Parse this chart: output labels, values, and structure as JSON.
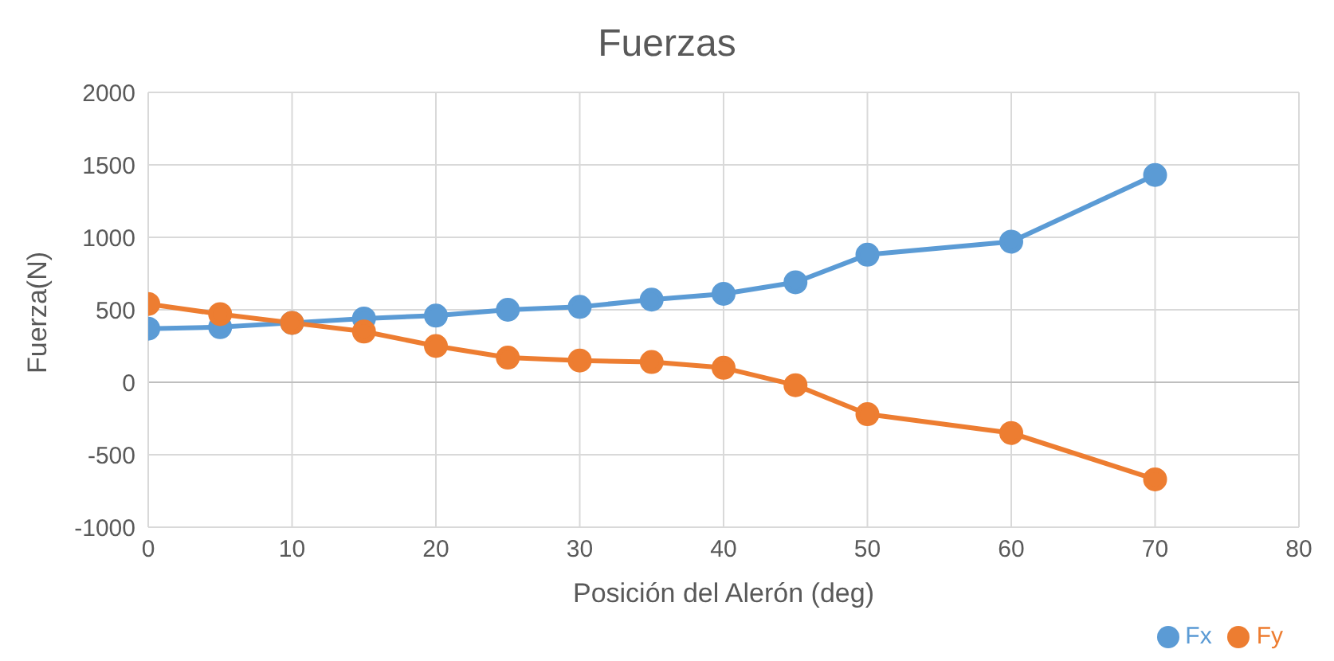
{
  "chart_data": {
    "type": "line",
    "title": "Fuerzas",
    "xlabel": "Posición del Alerón (deg)",
    "ylabel": "Fuerza(N)",
    "x": [
      0,
      5,
      10,
      15,
      20,
      25,
      30,
      35,
      40,
      45,
      50,
      60,
      70
    ],
    "series": [
      {
        "name": "Fx",
        "color": "#5b9bd5",
        "values": [
          370,
          380,
          410,
          440,
          460,
          500,
          520,
          570,
          610,
          690,
          880,
          970,
          1430
        ]
      },
      {
        "name": "Fy",
        "color": "#ed7d31",
        "values": [
          540,
          470,
          410,
          350,
          250,
          170,
          150,
          140,
          100,
          -20,
          -220,
          -350,
          -670
        ]
      }
    ],
    "xlim": [
      0,
      80
    ],
    "xticks": [
      0,
      10,
      20,
      30,
      40,
      50,
      60,
      70,
      80
    ],
    "ylim": [
      -1000,
      2000
    ],
    "yticks": [
      -1000,
      -500,
      0,
      500,
      1000,
      1500,
      2000
    ],
    "grid": true,
    "legend": "bottom right",
    "marker": "circle",
    "line_style": "solid"
  }
}
